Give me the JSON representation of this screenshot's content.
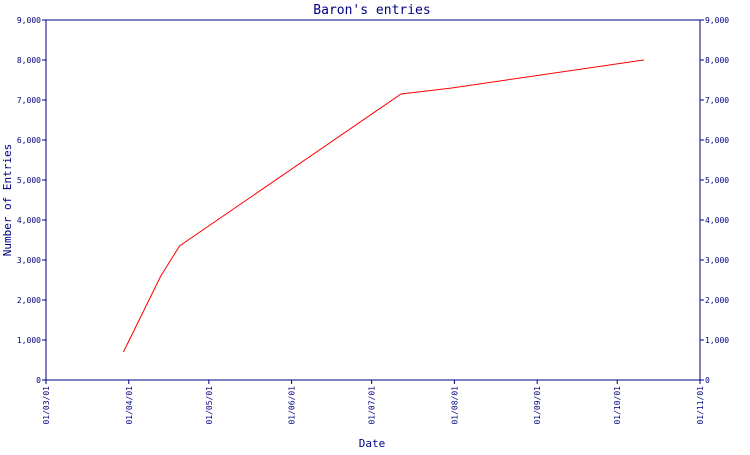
{
  "chart_data": {
    "type": "line",
    "title": "Baron's entries",
    "xlabel": "Date",
    "ylabel": "Number of Entries",
    "x_ticks": [
      "01/03/01",
      "01/04/01",
      "01/05/01",
      "01/06/01",
      "01/07/01",
      "01/08/01",
      "01/09/01",
      "01/10/01",
      "01/11/01"
    ],
    "y_ticks": [
      "0",
      "1,000",
      "2,000",
      "3,000",
      "4,000",
      "5,000",
      "6,000",
      "7,000",
      "8,000",
      "9,000"
    ],
    "ylim": [
      0,
      9000
    ],
    "xlim": [
      "2001-03-01",
      "2001-11-01"
    ],
    "grid": false,
    "colors": {
      "axis": "#000080",
      "line": "#ff0000"
    },
    "series": [
      {
        "x": [
          "2001-03-30",
          "2001-04-06",
          "2001-04-13",
          "2001-04-20",
          "2001-07-12",
          "2001-07-31",
          "2001-10-11"
        ],
        "y": [
          700,
          1650,
          2600,
          3350,
          7150,
          7300,
          8000
        ]
      }
    ]
  }
}
